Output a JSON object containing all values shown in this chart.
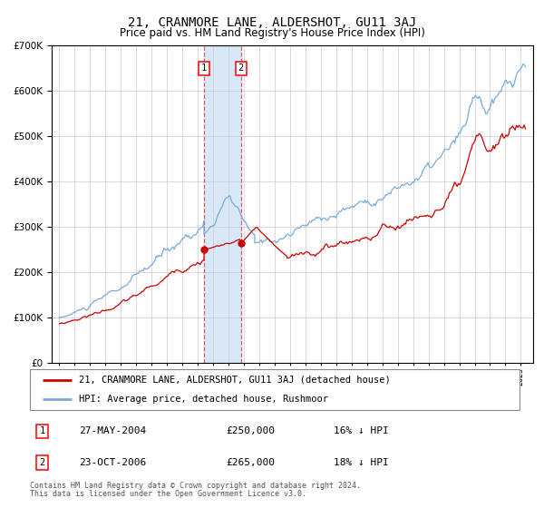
{
  "title": "21, CRANMORE LANE, ALDERSHOT, GU11 3AJ",
  "subtitle": "Price paid vs. HM Land Registry's House Price Index (HPI)",
  "background_color": "#ffffff",
  "grid_color": "#cccccc",
  "hpi_color": "#7aaadd",
  "price_color": "#cc0000",
  "sale1_date": 2004.41,
  "sale1_price": 250000,
  "sale2_date": 2006.81,
  "sale2_price": 265000,
  "legend_house": "21, CRANMORE LANE, ALDERSHOT, GU11 3AJ (detached house)",
  "legend_hpi": "HPI: Average price, detached house, Rushmoor",
  "sale1_label": "27-MAY-2004",
  "sale1_amount": "£250,000",
  "sale1_pct": "16% ↓ HPI",
  "sale2_label": "23-OCT-2006",
  "sale2_amount": "£265,000",
  "sale2_pct": "18% ↓ HPI",
  "footnote1": "Contains HM Land Registry data © Crown copyright and database right 2024.",
  "footnote2": "This data is licensed under the Open Government Licence v3.0.",
  "shade_color": "#d8e8f8",
  "vline_color": "#dd4444"
}
